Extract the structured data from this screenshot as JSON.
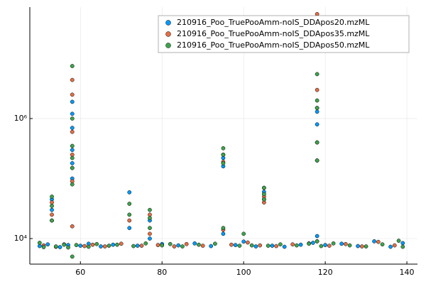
{
  "chart_data": {
    "type": "scatter",
    "log_y": true,
    "grid": true,
    "legend": "top right",
    "xlim": [
      47.6,
      142.6
    ],
    "xticks": [
      60,
      80,
      100,
      120,
      140
    ],
    "ylim": [
      3750,
      72000000
    ],
    "yticks": [
      {
        "value": 10000,
        "label": "10⁴"
      },
      {
        "value": 1000000,
        "label": "10⁶"
      }
    ],
    "series": [
      {
        "name": "210916_Poo_TruePooAmm-noIS_DDApos20.mzML",
        "color": "#009af9",
        "x": [
          50,
          52,
          53,
          53,
          53,
          55,
          57,
          58,
          58,
          58,
          58,
          58,
          58,
          60,
          62,
          65,
          68,
          72,
          72,
          74,
          77,
          77,
          80,
          84,
          88,
          92,
          95,
          95,
          95,
          98,
          100,
          103,
          105,
          105,
          107,
          110,
          114,
          117,
          118,
          118,
          118,
          118,
          120,
          124,
          128,
          132,
          136,
          139
        ],
        "values": [
          7500,
          8000,
          20000,
          30000,
          45000,
          7200,
          7800,
          100000,
          180000,
          300000,
          700000,
          1200000,
          1900000,
          7600,
          8200,
          7400,
          7900,
          59000,
          15000,
          7600,
          10000,
          20000,
          8100,
          7700,
          8300,
          7500,
          160000,
          220000,
          12000,
          7800,
          8900,
          7400,
          45000,
          60000,
          7600,
          7300,
          7900,
          8500,
          200000,
          800000,
          1300000,
          11000,
          7800,
          8200,
          7500,
          9000,
          7300,
          8400
        ]
      },
      {
        "name": "210916_Poo_TruePooAmm-noIS_DDApos35.mzML",
        "color": "#e26f46",
        "x": [
          51,
          53,
          53,
          54,
          56,
          58,
          58,
          58,
          58,
          58,
          58,
          58,
          61,
          63,
          66,
          70,
          72,
          75,
          77,
          77,
          79,
          83,
          86,
          90,
          95,
          95,
          95,
          97,
          101,
          104,
          105,
          105,
          105,
          108,
          112,
          116,
          118,
          118,
          118,
          118,
          118,
          121,
          125,
          129,
          133,
          137
        ],
        "values": [
          7700,
          25000,
          40000,
          7300,
          8000,
          90000,
          150000,
          250000,
          2500000,
          4400000,
          16000,
          600000,
          7500,
          7900,
          7400,
          8200,
          20000,
          7600,
          25000,
          12000,
          7800,
          7400,
          8100,
          7600,
          190000,
          250000,
          14000,
          7900,
          8600,
          7700,
          50000,
          70000,
          40000,
          7500,
          8000,
          8300,
          55000000,
          3000000,
          1500000,
          400000,
          9000,
          7600,
          8100,
          7400,
          8800,
          7700
        ]
      },
      {
        "name": "210916_Poo_TruePooAmm-noIS_DDApos50.mzML",
        "color": "#3da44d",
        "x": [
          50,
          51,
          53,
          53,
          53,
          54,
          56,
          57,
          58,
          58,
          58,
          58,
          58,
          58,
          58,
          59,
          62,
          64,
          67,
          69,
          72,
          72,
          73,
          76,
          77,
          77,
          77,
          80,
          82,
          85,
          89,
          93,
          95,
          95,
          95,
          95,
          99,
          100,
          102,
          105,
          105,
          105,
          106,
          109,
          113,
          116,
          118,
          118,
          118,
          118,
          118,
          118,
          119,
          122,
          126,
          130,
          134,
          138,
          139
        ],
        "values": [
          8500,
          7200,
          20000,
          35000,
          50000,
          7400,
          7900,
          7100,
          80000,
          150000,
          220000,
          350000,
          1000000,
          7500000,
          5000,
          7800,
          7300,
          8100,
          7600,
          7900,
          38000,
          25000,
          7500,
          8300,
          15000,
          22000,
          30000,
          7700,
          8100,
          7400,
          7900,
          8200,
          180000,
          250000,
          320000,
          15000,
          7600,
          12000,
          7700,
          45000,
          55000,
          70000,
          7600,
          8000,
          7700,
          8200,
          200000,
          400000,
          1500000,
          2000000,
          5500000,
          9000,
          7500,
          8300,
          7700,
          7400,
          8000,
          9200,
          7300
        ]
      }
    ]
  }
}
